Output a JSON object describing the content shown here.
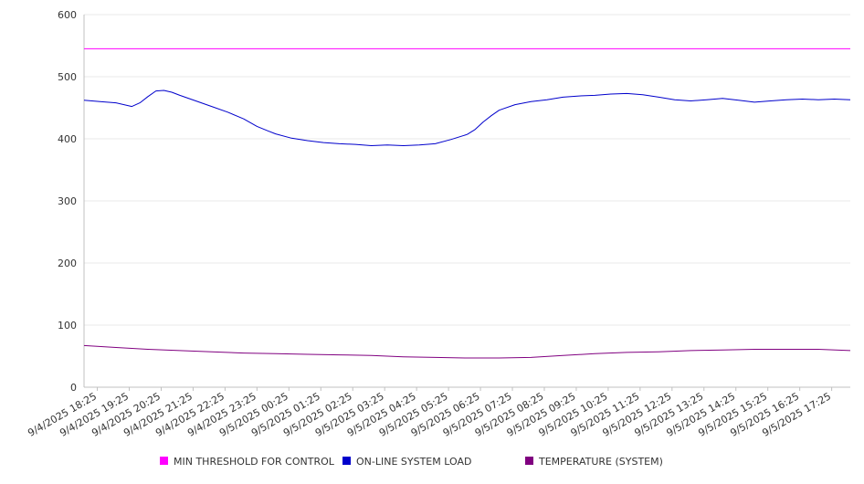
{
  "chart_data": {
    "type": "line",
    "ylim": [
      0,
      600
    ],
    "y_ticks": [
      0,
      100,
      200,
      300,
      400,
      500,
      600
    ],
    "x_tick_labels": [
      "9/4/2025 18:25",
      "9/4/2025 19:25",
      "9/4/2025 20:25",
      "9/4/2025 21:25",
      "9/4/2025 22:25",
      "9/4/2025 23:25",
      "9/5/2025 00:25",
      "9/5/2025 01:25",
      "9/5/2025 02:25",
      "9/5/2025 03:25",
      "9/5/2025 04:25",
      "9/5/2025 05:25",
      "9/5/2025 06:25",
      "9/5/2025 07:25",
      "9/5/2025 08:25",
      "9/5/2025 09:25",
      "9/5/2025 10:25",
      "9/5/2025 11:25",
      "9/5/2025 12:25",
      "9/5/2025 13:25",
      "9/5/2025 14:25",
      "9/5/2025 15:25",
      "9/5/2025 16:25",
      "9/5/2025 17:25"
    ],
    "x_range": [
      "9/4/2025 18:00",
      "9/5/2025 18:00"
    ],
    "grid": true,
    "legend_position": "bottom",
    "series": [
      {
        "name": "MIN THRESHOLD FOR CONTROL",
        "color": "#ff00ff",
        "points": [
          [
            "9/4/2025 18:00",
            545
          ],
          [
            "9/5/2025 18:00",
            545
          ]
        ]
      },
      {
        "name": "ON-LINE SYSTEM LOAD",
        "color": "#0000cc",
        "points": [
          [
            "9/4/2025 18:00",
            462
          ],
          [
            "9/4/2025 18:30",
            460
          ],
          [
            "9/4/2025 19:00",
            458
          ],
          [
            "9/4/2025 19:30",
            452
          ],
          [
            "9/4/2025 19:45",
            458
          ],
          [
            "9/4/2025 20:00",
            468
          ],
          [
            "9/4/2025 20:15",
            477
          ],
          [
            "9/4/2025 20:30",
            478
          ],
          [
            "9/4/2025 20:45",
            475
          ],
          [
            "9/4/2025 21:00",
            470
          ],
          [
            "9/4/2025 21:30",
            461
          ],
          [
            "9/4/2025 22:00",
            452
          ],
          [
            "9/4/2025 22:30",
            443
          ],
          [
            "9/4/2025 23:00",
            432
          ],
          [
            "9/4/2025 23:25",
            420
          ],
          [
            "9/4/2025 23:45",
            413
          ],
          [
            "9/5/2025 00:00",
            408
          ],
          [
            "9/5/2025 00:30",
            401
          ],
          [
            "9/5/2025 01:00",
            397
          ],
          [
            "9/5/2025 01:30",
            394
          ],
          [
            "9/5/2025 02:00",
            392
          ],
          [
            "9/5/2025 02:30",
            391
          ],
          [
            "9/5/2025 03:00",
            389
          ],
          [
            "9/5/2025 03:30",
            390
          ],
          [
            "9/5/2025 04:00",
            389
          ],
          [
            "9/5/2025 04:30",
            390
          ],
          [
            "9/5/2025 05:00",
            392
          ],
          [
            "9/5/2025 05:30",
            399
          ],
          [
            "9/5/2025 06:00",
            407
          ],
          [
            "9/5/2025 06:15",
            415
          ],
          [
            "9/5/2025 06:30",
            427
          ],
          [
            "9/5/2025 06:45",
            437
          ],
          [
            "9/5/2025 07:00",
            446
          ],
          [
            "9/5/2025 07:30",
            455
          ],
          [
            "9/5/2025 08:00",
            460
          ],
          [
            "9/5/2025 08:30",
            463
          ],
          [
            "9/5/2025 09:00",
            467
          ],
          [
            "9/5/2025 09:30",
            469
          ],
          [
            "9/5/2025 10:00",
            470
          ],
          [
            "9/5/2025 10:30",
            472
          ],
          [
            "9/5/2025 11:00",
            473
          ],
          [
            "9/5/2025 11:30",
            471
          ],
          [
            "9/5/2025 12:00",
            467
          ],
          [
            "9/5/2025 12:30",
            463
          ],
          [
            "9/5/2025 13:00",
            461
          ],
          [
            "9/5/2025 13:30",
            463
          ],
          [
            "9/5/2025 14:00",
            465
          ],
          [
            "9/5/2025 14:30",
            462
          ],
          [
            "9/5/2025 15:00",
            459
          ],
          [
            "9/5/2025 15:30",
            461
          ],
          [
            "9/5/2025 16:00",
            463
          ],
          [
            "9/5/2025 16:30",
            464
          ],
          [
            "9/5/2025 17:00",
            463
          ],
          [
            "9/5/2025 17:30",
            464
          ],
          [
            "9/5/2025 18:00",
            463
          ]
        ]
      },
      {
        "name": "TEMPERATURE (SYSTEM)",
        "color": "#800080",
        "points": [
          [
            "9/4/2025 18:00",
            67
          ],
          [
            "9/4/2025 19:00",
            64
          ],
          [
            "9/4/2025 20:00",
            61
          ],
          [
            "9/4/2025 21:00",
            59
          ],
          [
            "9/4/2025 22:00",
            57
          ],
          [
            "9/4/2025 23:00",
            55
          ],
          [
            "9/5/2025 00:00",
            54
          ],
          [
            "9/5/2025 01:00",
            53
          ],
          [
            "9/5/2025 02:00",
            52
          ],
          [
            "9/5/2025 03:00",
            51
          ],
          [
            "9/5/2025 04:00",
            49
          ],
          [
            "9/5/2025 05:00",
            48
          ],
          [
            "9/5/2025 06:00",
            47
          ],
          [
            "9/5/2025 07:00",
            47
          ],
          [
            "9/5/2025 08:00",
            48
          ],
          [
            "9/5/2025 09:00",
            51
          ],
          [
            "9/5/2025 10:00",
            54
          ],
          [
            "9/5/2025 11:00",
            56
          ],
          [
            "9/5/2025 12:00",
            57
          ],
          [
            "9/5/2025 13:00",
            59
          ],
          [
            "9/5/2025 14:00",
            60
          ],
          [
            "9/5/2025 15:00",
            61
          ],
          [
            "9/5/2025 16:00",
            61
          ],
          [
            "9/5/2025 17:00",
            61
          ],
          [
            "9/5/2025 18:00",
            59
          ]
        ]
      }
    ]
  }
}
